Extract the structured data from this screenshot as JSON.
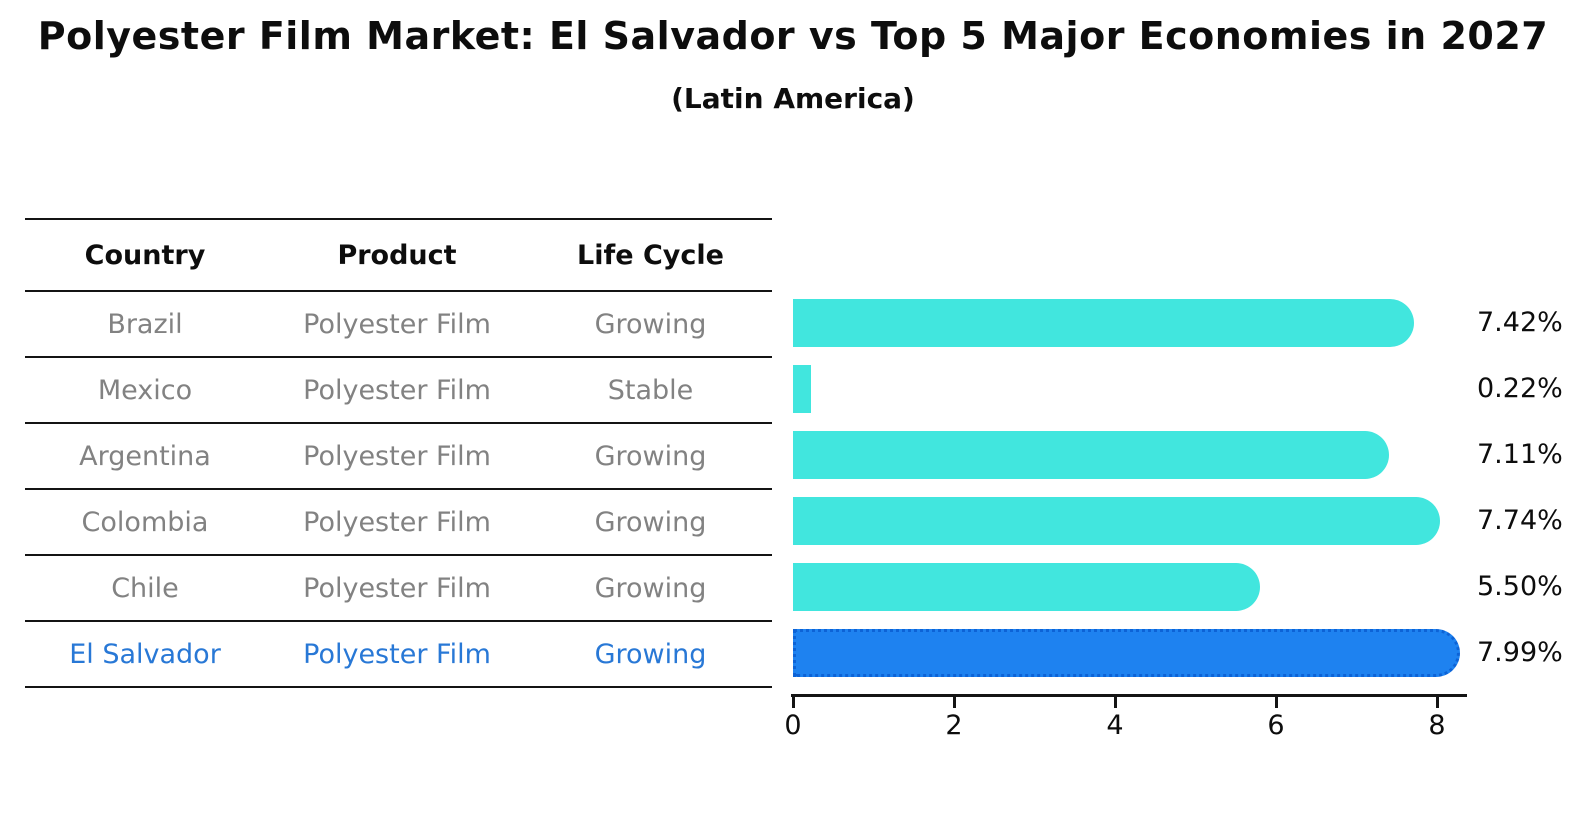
{
  "table": {
    "headers": [
      "Country",
      "Product",
      "Life Cycle"
    ],
    "rows": [
      {
        "country": "Brazil",
        "product": "Polyester Film",
        "life_cycle": "Growing",
        "highlight": false
      },
      {
        "country": "Mexico",
        "product": "Polyester Film",
        "life_cycle": "Stable",
        "highlight": false
      },
      {
        "country": "Argentina",
        "product": "Polyester Film",
        "life_cycle": "Growing",
        "highlight": false
      },
      {
        "country": "Colombia",
        "product": "Polyester Film",
        "life_cycle": "Growing",
        "highlight": false
      },
      {
        "country": "Chile",
        "product": "Polyester Film",
        "life_cycle": "Growing",
        "highlight": false
      },
      {
        "country": "El Salvador",
        "product": "Polyester Film",
        "life_cycle": "Growing",
        "highlight": true
      }
    ]
  },
  "chart_data": {
    "type": "bar",
    "orientation": "horizontal",
    "title": "Polyester Film Market: El Salvador vs Top 5 Major Economies in 2027",
    "subtitle": "(Latin America)",
    "categories": [
      "Brazil",
      "Mexico",
      "Argentina",
      "Colombia",
      "Chile",
      "El Salvador"
    ],
    "values": [
      7.42,
      0.22,
      7.11,
      7.74,
      5.5,
      7.99
    ],
    "value_labels": [
      "7.42%",
      "0.22%",
      "7.11%",
      "7.74%",
      "5.50%",
      "7.99%"
    ],
    "highlight_index": 5,
    "xlabel": "",
    "ylabel": "",
    "xticks": [
      0,
      2,
      4,
      6,
      8
    ],
    "xlim": [
      0,
      8.35
    ],
    "grid": false,
    "legend": null
  },
  "colors": {
    "bar_default": "#41e6de",
    "bar_highlight": "#1e82f0",
    "highlight_border": "#0d63d6",
    "highlight_text": "#2878d6",
    "table_text": "#828282",
    "axis": "#141414"
  }
}
